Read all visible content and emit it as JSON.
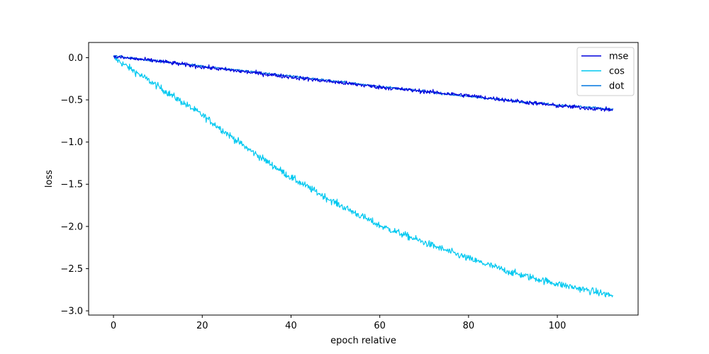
{
  "chart_data": {
    "type": "line",
    "title": "",
    "xlabel": "epoch relative",
    "ylabel": "loss",
    "xlim": [
      -5.6,
      118.2
    ],
    "ylim": [
      -3.05,
      0.18
    ],
    "xticks": [
      0,
      20,
      40,
      60,
      80,
      100
    ],
    "xtick_labels": [
      "0",
      "20",
      "40",
      "60",
      "80",
      "100"
    ],
    "yticks": [
      0.0,
      -0.5,
      -1.0,
      -1.5,
      -2.0,
      -2.5,
      -3.0
    ],
    "ytick_labels": [
      "0.0",
      "−0.5",
      "−1.0",
      "−1.5",
      "−2.0",
      "−2.5",
      "−3.0"
    ],
    "grid": false,
    "legend": "top-right",
    "series": [
      {
        "name": "mse",
        "color": "#0000dd",
        "x": [
          0,
          10,
          20,
          30,
          40,
          50,
          60,
          70,
          80,
          90,
          100,
          112.5
        ],
        "values": [
          0.01,
          -0.04,
          -0.11,
          -0.17,
          -0.23,
          -0.29,
          -0.35,
          -0.4,
          -0.45,
          -0.51,
          -0.57,
          -0.62
        ],
        "noise": 0.018
      },
      {
        "name": "cos",
        "color": "#00c8f0",
        "x": [
          0,
          10,
          20,
          30,
          40,
          50,
          60,
          70,
          80,
          90,
          100,
          112.5
        ],
        "values": [
          0.0,
          -0.34,
          -0.68,
          -1.07,
          -1.42,
          -1.72,
          -1.99,
          -2.19,
          -2.38,
          -2.55,
          -2.68,
          -2.82
        ],
        "noise": 0.03
      },
      {
        "name": "dot",
        "color": "#0077e0",
        "x": [
          0,
          10,
          20,
          30,
          40,
          50,
          60,
          70,
          80,
          90,
          100,
          112.5
        ],
        "values": [
          0.02,
          -0.04,
          -0.1,
          -0.16,
          -0.22,
          -0.28,
          -0.34,
          -0.4,
          -0.46,
          -0.51,
          -0.56,
          -0.61
        ],
        "noise": 0.01
      }
    ]
  }
}
